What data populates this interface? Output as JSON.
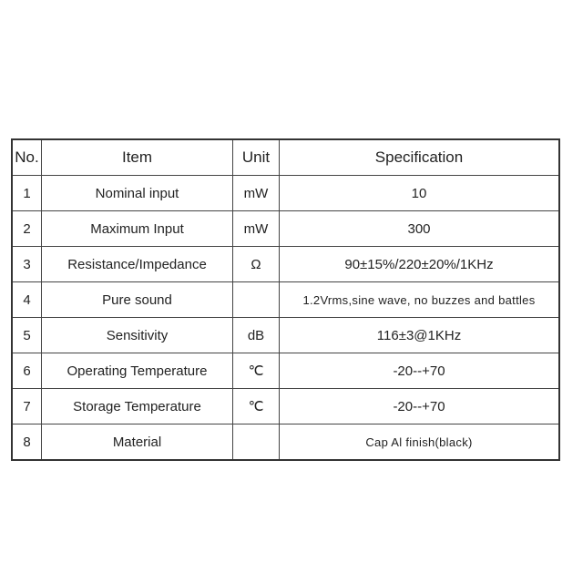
{
  "headers": [
    "No.",
    "Item",
    "Unit",
    "Specification"
  ],
  "rows": [
    {
      "no": "1",
      "item": "Nominal input",
      "unit": "mW",
      "spec": "10"
    },
    {
      "no": "2",
      "item": "Maximum Input",
      "unit": "mW",
      "spec": "300"
    },
    {
      "no": "3",
      "item": "Resistance/Impedance",
      "unit": "Ω",
      "spec": "90±15%/220±20%/1KHz"
    },
    {
      "no": "4",
      "item": "Pure sound",
      "unit": "",
      "spec": "1.2Vrms,sine wave,  no buzzes and battles"
    },
    {
      "no": "5",
      "item": "Sensitivity",
      "unit": "dB",
      "spec": "116±3@1KHz"
    },
    {
      "no": "6",
      "item": "Operating Temperature",
      "unit": "℃",
      "spec": "-20--+70"
    },
    {
      "no": "7",
      "item": "Storage Temperature",
      "unit": "℃",
      "spec": "-20--+70"
    },
    {
      "no": "8",
      "item": "Material",
      "unit": "",
      "spec": "Cap Al finish(black)"
    }
  ]
}
